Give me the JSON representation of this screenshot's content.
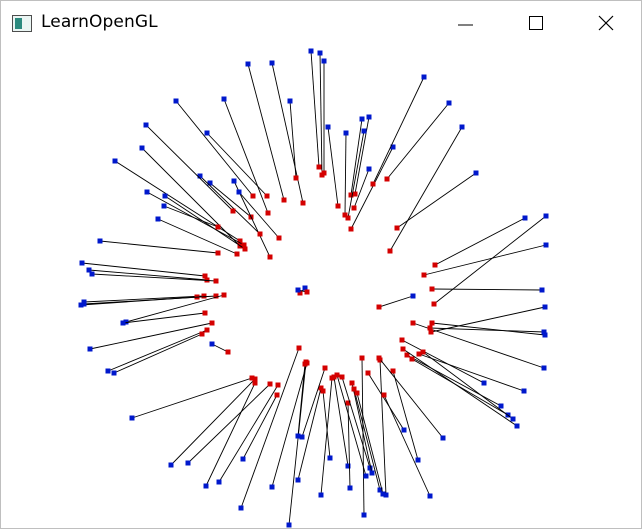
{
  "window": {
    "title": "LearnOpenGL",
    "controls": {
      "minimize": "minimize-icon",
      "maximize": "maximize-icon",
      "close": "close-icon"
    }
  },
  "scene": {
    "background": "#ffffff",
    "line_color": "#000000",
    "colors": {
      "start": "#d40000",
      "end": "#0018cc"
    }
  }
}
